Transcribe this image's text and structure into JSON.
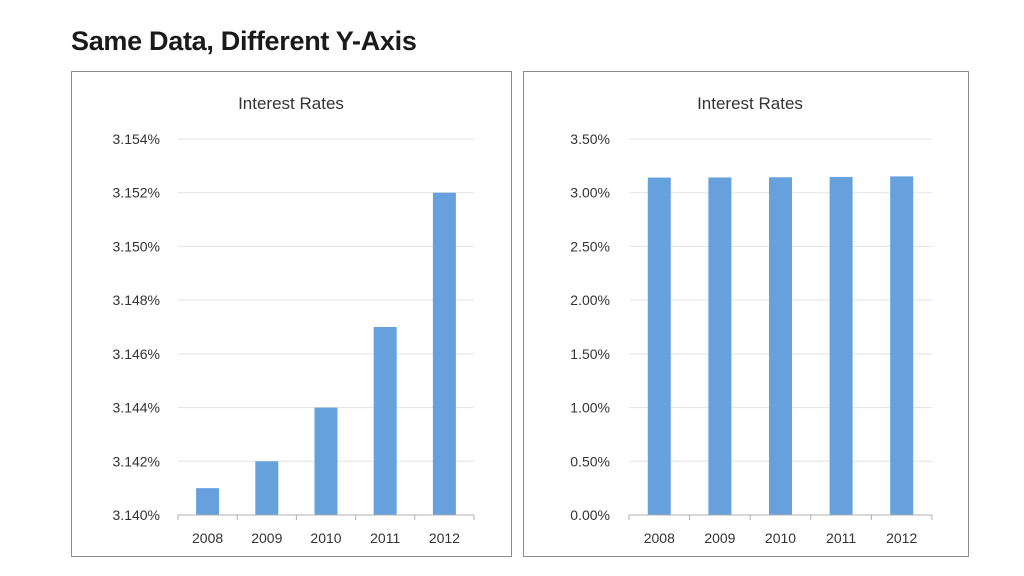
{
  "page": {
    "heading": "Same Data, Different Y-Axis"
  },
  "colors": {
    "bar": "#66a1dd"
  },
  "chart_data": [
    {
      "type": "bar",
      "title": "Interest Rates",
      "categories": [
        "2008",
        "2009",
        "2010",
        "2011",
        "2012"
      ],
      "values": [
        3.141,
        3.142,
        3.144,
        3.147,
        3.152
      ],
      "ylim": [
        3.14,
        3.154
      ],
      "yticks": [
        3.14,
        3.142,
        3.144,
        3.146,
        3.148,
        3.15,
        3.152,
        3.154
      ],
      "ytick_labels": [
        "3.140%",
        "3.142%",
        "3.144%",
        "3.146%",
        "3.148%",
        "3.150%",
        "3.152%",
        "3.154%"
      ],
      "xlabel": "",
      "ylabel": "",
      "grid": true
    },
    {
      "type": "bar",
      "title": "Interest Rates",
      "categories": [
        "2008",
        "2009",
        "2010",
        "2011",
        "2012"
      ],
      "values": [
        3.141,
        3.142,
        3.144,
        3.147,
        3.152
      ],
      "ylim": [
        0,
        3.5
      ],
      "yticks": [
        0,
        0.5,
        1.0,
        1.5,
        2.0,
        2.5,
        3.0,
        3.5
      ],
      "ytick_labels": [
        "0.00%",
        "0.50%",
        "1.00%",
        "1.50%",
        "2.00%",
        "2.50%",
        "3.00%",
        "3.50%"
      ],
      "xlabel": "",
      "ylabel": "",
      "grid": true
    }
  ]
}
